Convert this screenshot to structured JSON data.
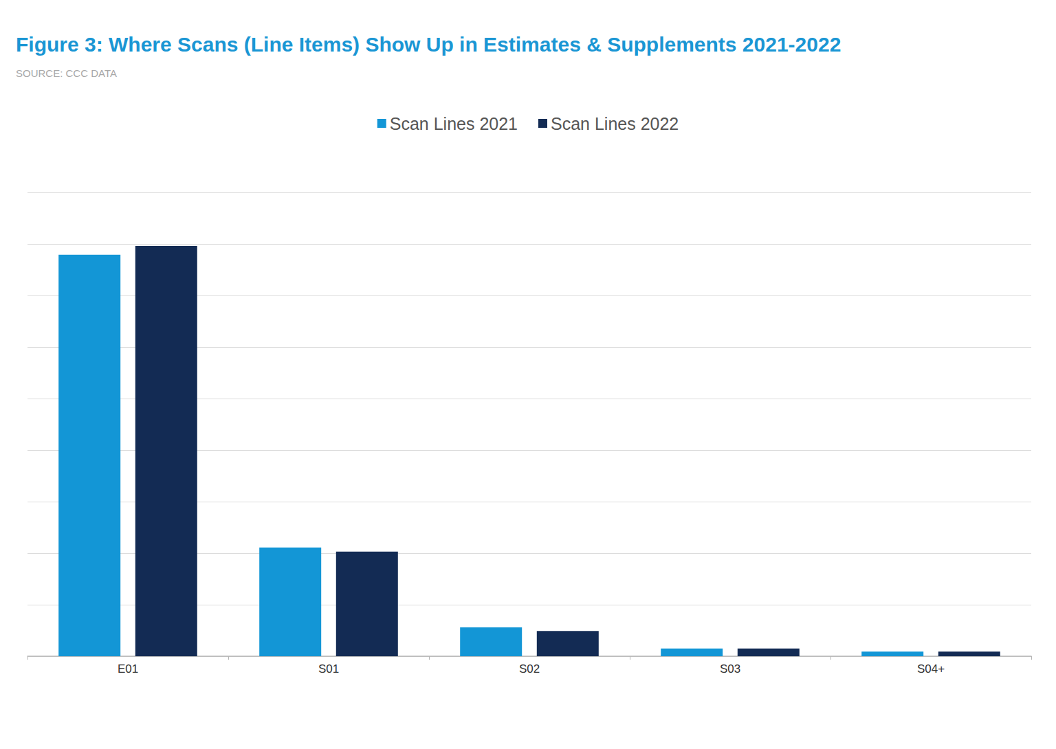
{
  "chart_data": {
    "type": "bar",
    "title": "Figure 3: Where Scans (Line Items) Show Up in Estimates & Supplements 2021-2022",
    "subtitle": "SOURCE: CCC DATA",
    "categories": [
      "E01",
      "S01",
      "S02",
      "S03",
      "S04+"
    ],
    "series": [
      {
        "name": "Scan Lines 2021",
        "color": "#1396d6",
        "values": [
          7.79,
          2.11,
          0.56,
          0.15,
          0.09
        ]
      },
      {
        "name": "Scan Lines 2022",
        "color": "#132b54",
        "values": [
          7.96,
          2.03,
          0.49,
          0.15,
          0.09
        ]
      }
    ],
    "ylim": [
      0,
      9
    ],
    "yticks": [
      0,
      1,
      2,
      3,
      4,
      5,
      6,
      7,
      8,
      9
    ],
    "grid": true,
    "legend": "top",
    "tick_labels": "x"
  }
}
